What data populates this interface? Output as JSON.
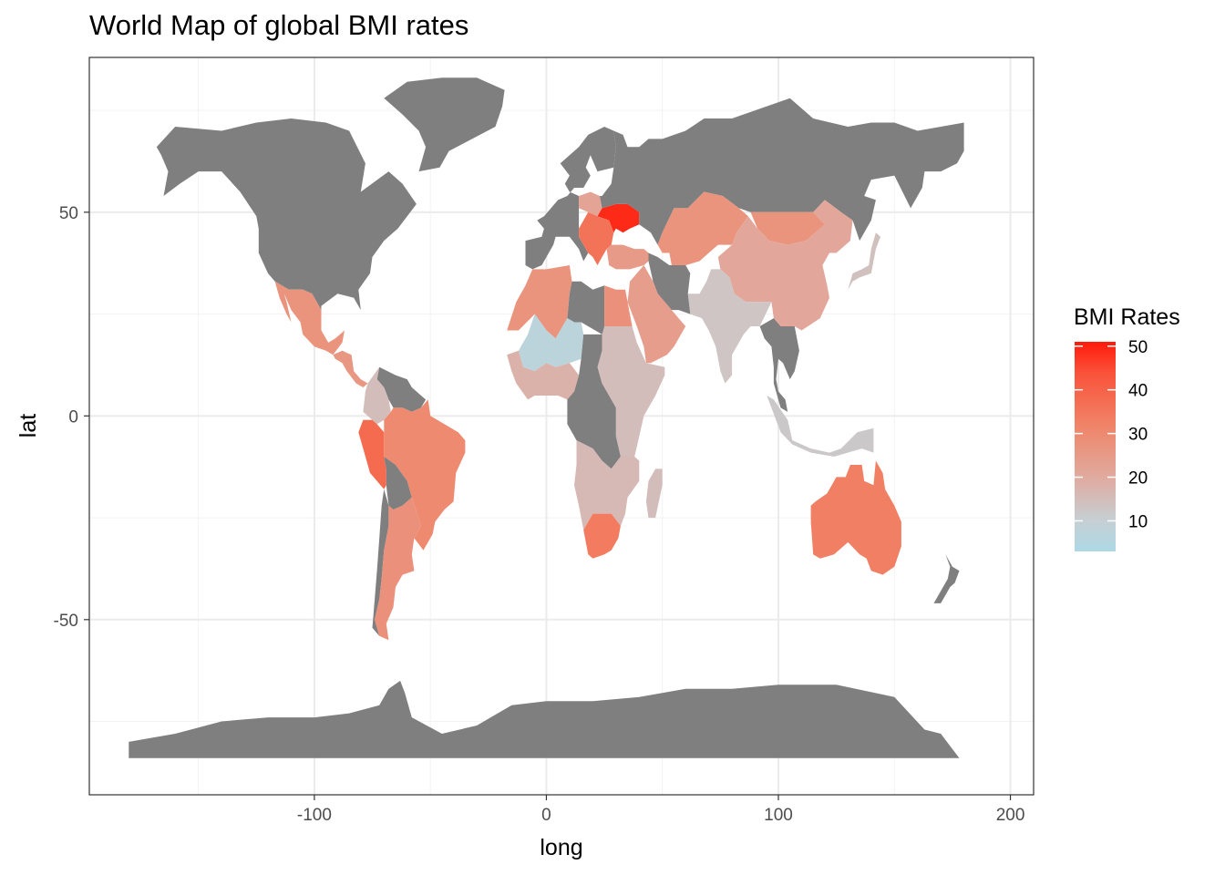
{
  "chart_data": {
    "type": "choropleth-map",
    "title": "World Map of global BMI rates",
    "xlabel": "long",
    "ylabel": "lat",
    "xlim": [
      -197,
      210
    ],
    "ylim": [
      -93,
      88
    ],
    "x_ticks": [
      -100,
      0,
      100,
      200
    ],
    "y_ticks": [
      -50,
      0,
      50
    ],
    "x_tick_labels": [
      "-100",
      "0",
      "100",
      "200"
    ],
    "y_tick_labels": [
      "-50",
      "0",
      "50"
    ],
    "grid": true,
    "no_data_color": "#7f7f7f",
    "legend": {
      "title": "BMI Rates",
      "placement": "right",
      "ticks": [
        10,
        20,
        30,
        40,
        50
      ],
      "tick_labels": [
        "10",
        "20",
        "30",
        "40",
        "50"
      ],
      "range": [
        3,
        51
      ],
      "low_color": "#add8e6",
      "high_color": "#ff0000"
    },
    "regions": [
      {
        "name": "North America",
        "value": null
      },
      {
        "name": "Greenland",
        "value": null
      },
      {
        "name": "Mexico",
        "value": 27
      },
      {
        "name": "Central America",
        "value": 26
      },
      {
        "name": "Venezuela",
        "value": null
      },
      {
        "name": "Colombia",
        "value": 15
      },
      {
        "name": "Peru",
        "value": 38
      },
      {
        "name": "Brazil",
        "value": 30
      },
      {
        "name": "Bolivia",
        "value": null
      },
      {
        "name": "Chile",
        "value": null
      },
      {
        "name": "Argentina",
        "value": 28
      },
      {
        "name": "Western Europe",
        "value": null
      },
      {
        "name": "Poland",
        "value": 22
      },
      {
        "name": "Ukraine",
        "value": 49
      },
      {
        "name": "Balkans",
        "value": 36
      },
      {
        "name": "Turkey",
        "value": 25
      },
      {
        "name": "Russia",
        "value": null
      },
      {
        "name": "Kazakhstan",
        "value": 27
      },
      {
        "name": "Mongolia",
        "value": 27
      },
      {
        "name": "China",
        "value": 21
      },
      {
        "name": "India",
        "value": 13
      },
      {
        "name": "Iran",
        "value": null
      },
      {
        "name": "Arabia",
        "value": 24
      },
      {
        "name": "Southeast Asia",
        "value": null
      },
      {
        "name": "Indonesia",
        "value": 12
      },
      {
        "name": "Japan",
        "value": 14
      },
      {
        "name": "Australia",
        "value": 33
      },
      {
        "name": "New Zealand",
        "value": null
      },
      {
        "name": "North Africa",
        "value": 27
      },
      {
        "name": "Libya",
        "value": null
      },
      {
        "name": "Egypt",
        "value": 28
      },
      {
        "name": "Sahel",
        "value": 7
      },
      {
        "name": "West Africa",
        "value": 18
      },
      {
        "name": "East Africa",
        "value": 15
      },
      {
        "name": "Central Africa",
        "value": null
      },
      {
        "name": "Southern Africa",
        "value": 16
      },
      {
        "name": "South Africa",
        "value": 34
      },
      {
        "name": "Madagascar",
        "value": 15
      },
      {
        "name": "Antarctica",
        "value": null
      }
    ]
  }
}
